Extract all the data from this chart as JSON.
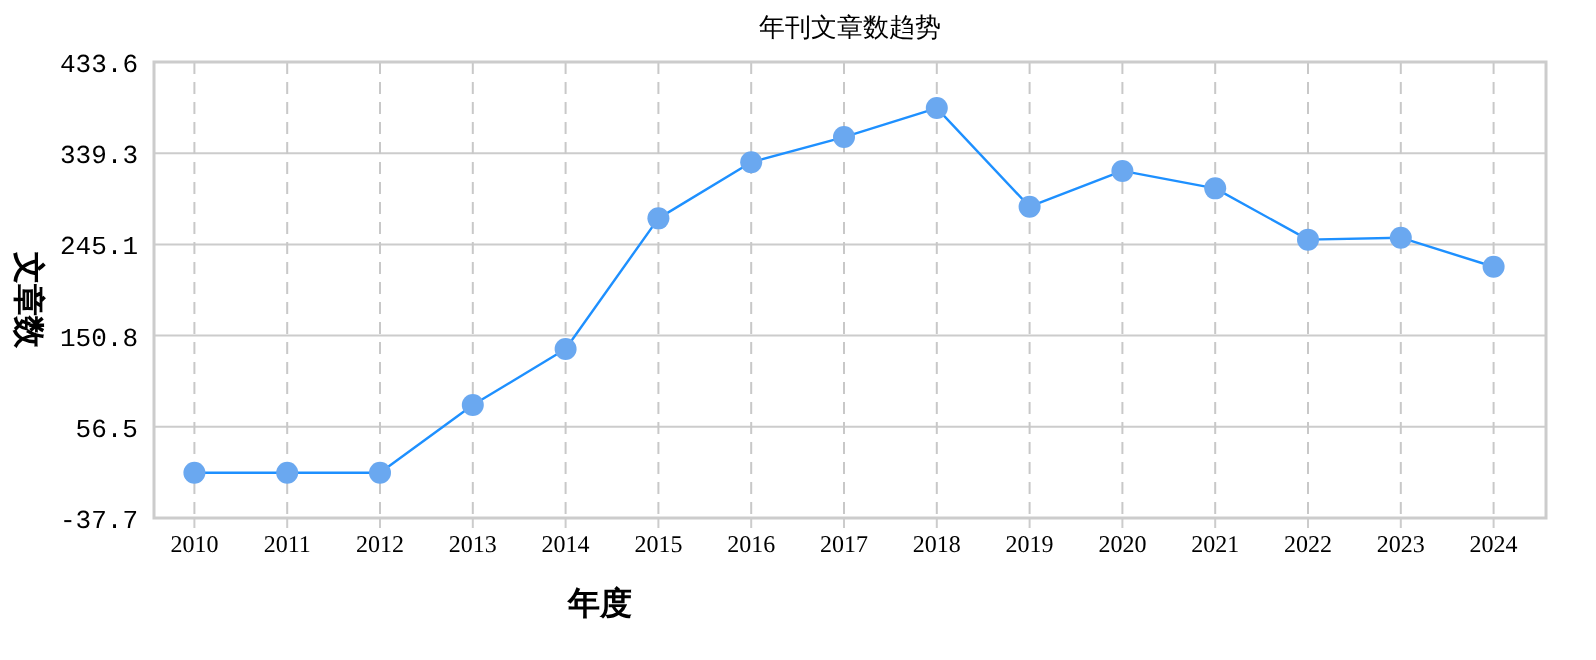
{
  "chart_data": {
    "type": "line",
    "title": "年刊文章数趋势",
    "xlabel": "年度",
    "ylabel": "文章数",
    "categories": [
      "2010",
      "2011",
      "2012",
      "2013",
      "2014",
      "2015",
      "2016",
      "2017",
      "2018",
      "2019",
      "2020",
      "2021",
      "2022",
      "2023",
      "2024"
    ],
    "series": [
      {
        "color": "#1e90ff",
        "values": [
          9,
          9,
          9,
          79,
          137,
          272,
          330,
          356,
          386,
          284,
          321,
          303,
          250,
          252,
          222
        ]
      }
    ],
    "ylim": [
      -37.7,
      433.6
    ],
    "yticks": [
      -37.7,
      56.5,
      150.8,
      245.1,
      339.3,
      433.6
    ],
    "grid": true,
    "marker": "circle"
  }
}
